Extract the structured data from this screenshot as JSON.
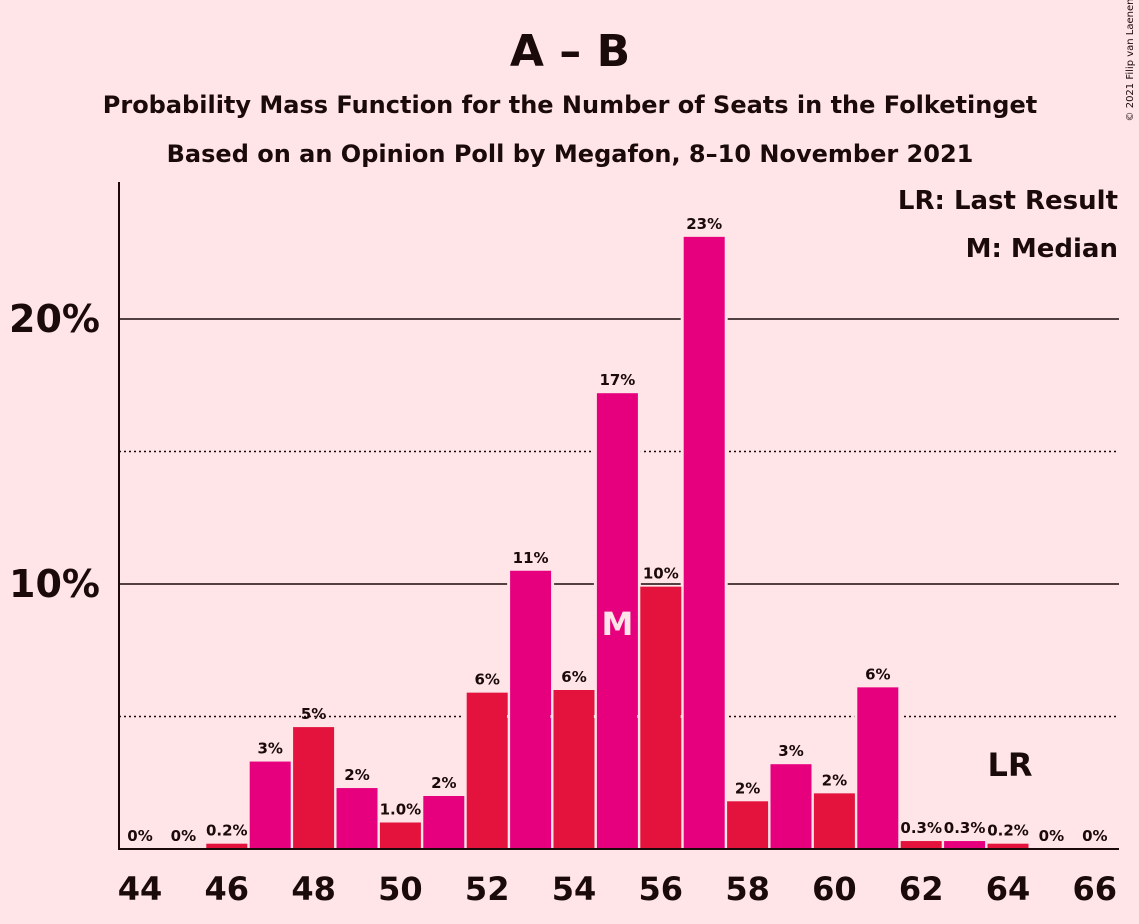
{
  "chart_data": {
    "type": "bar",
    "title": "A – B",
    "subtitle_1": "Probability Mass Function for the Number of Seats in the Folketinget",
    "subtitle_2": "Based on an Opinion Poll by Megafon, 8–10 November 2021",
    "credit": "© 2021 Filip van Laenen",
    "legend": {
      "last_result": "LR: Last Result",
      "median": "M: Median"
    },
    "median_marker": "M",
    "median_seat": 55,
    "last_result_marker": "LR",
    "last_result_seat": 64,
    "x": [
      44,
      45,
      46,
      47,
      48,
      49,
      50,
      51,
      52,
      53,
      54,
      55,
      56,
      57,
      58,
      59,
      60,
      61,
      62,
      63,
      64,
      65,
      66
    ],
    "values": [
      0,
      0,
      0.2,
      3.3,
      4.6,
      2.3,
      1.0,
      2.0,
      5.9,
      10.5,
      6.0,
      17.2,
      9.9,
      23.1,
      1.8,
      3.2,
      2.1,
      6.1,
      0.3,
      0.3,
      0.2,
      0,
      0
    ],
    "labels": [
      "0%",
      "0%",
      "0.2%",
      "3%",
      "5%",
      "2%",
      "1.0%",
      "2%",
      "6%",
      "11%",
      "6%",
      "17%",
      "10%",
      "23%",
      "2%",
      "3%",
      "2%",
      "6%",
      "0.3%",
      "0.3%",
      "0.2%",
      "0%",
      "0%"
    ],
    "x_tick_labels": [
      "44",
      "46",
      "48",
      "50",
      "52",
      "54",
      "56",
      "58",
      "60",
      "62",
      "64",
      "66"
    ],
    "y_tick_labels": [
      "10%",
      "20%"
    ],
    "y_solid_gridlines": [
      10,
      20
    ],
    "y_dotted_gridlines": [
      5,
      15
    ],
    "ylim": [
      0,
      25
    ],
    "colors": {
      "magenta": "#E6007E",
      "red": "#E3133D",
      "background": "#FFE4E8",
      "text": "#1a0a0a"
    }
  }
}
